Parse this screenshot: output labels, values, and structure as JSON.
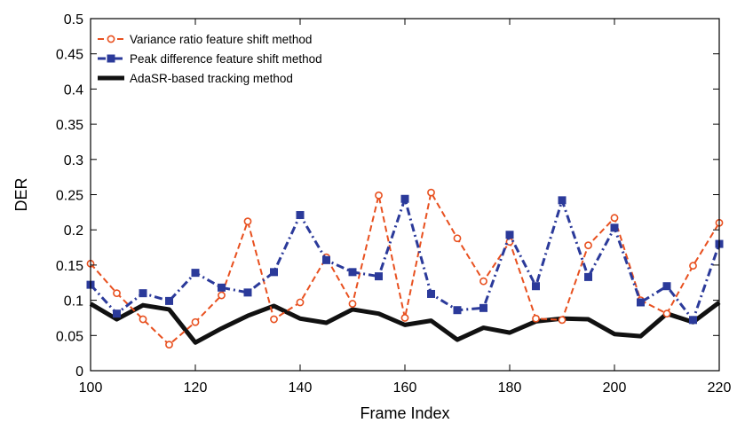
{
  "chart_data": {
    "type": "line",
    "xlabel": "Frame Index",
    "ylabel": "DER",
    "xlim": [
      100,
      220
    ],
    "ylim": [
      0,
      0.5
    ],
    "xticks": [
      100,
      120,
      140,
      160,
      180,
      200,
      220
    ],
    "yticks": [
      0,
      0.05,
      0.1,
      0.15,
      0.2,
      0.25,
      0.3,
      0.35,
      0.4,
      0.45,
      0.5
    ],
    "xtick_labels": [
      "100",
      "120",
      "140",
      "160",
      "180",
      "200",
      "220"
    ],
    "ytick_labels": [
      "0",
      "0.05",
      "0.1",
      "0.15",
      "0.2",
      "0.25",
      "0.3",
      "0.35",
      "0.4",
      "0.45",
      "0.5"
    ],
    "grid": false,
    "legend_position": "top-left",
    "x": [
      100,
      105,
      110,
      115,
      120,
      125,
      130,
      135,
      140,
      145,
      150,
      155,
      160,
      165,
      170,
      175,
      180,
      185,
      190,
      195,
      200,
      205,
      210,
      215,
      220
    ],
    "series": [
      {
        "name": "Variance ratio feature shift method",
        "color": "#e8501f",
        "line_style": "dashed",
        "marker": "circle",
        "values": [
          0.152,
          0.11,
          0.073,
          0.037,
          0.069,
          0.107,
          0.212,
          0.073,
          0.097,
          0.161,
          0.095,
          0.249,
          0.075,
          0.253,
          0.188,
          0.127,
          0.183,
          0.074,
          0.072,
          0.178,
          0.217,
          0.1,
          0.081,
          0.149,
          0.21
        ]
      },
      {
        "name": "Peak difference feature shift method",
        "color": "#2b3a9a",
        "line_style": "dash-dot",
        "marker": "square",
        "values": [
          0.122,
          0.081,
          0.11,
          0.099,
          0.139,
          0.118,
          0.111,
          0.14,
          0.221,
          0.157,
          0.14,
          0.134,
          0.244,
          0.109,
          0.086,
          0.089,
          0.193,
          0.12,
          0.242,
          0.133,
          0.203,
          0.097,
          0.12,
          0.072,
          0.18
        ]
      },
      {
        "name": "AdaSR-based tracking method",
        "color": "#111111",
        "line_style": "solid",
        "marker": "none",
        "values": [
          0.095,
          0.073,
          0.093,
          0.087,
          0.04,
          0.06,
          0.078,
          0.092,
          0.074,
          0.068,
          0.087,
          0.081,
          0.065,
          0.071,
          0.044,
          0.061,
          0.054,
          0.07,
          0.074,
          0.073,
          0.052,
          0.049,
          0.081,
          0.069,
          0.097
        ]
      }
    ]
  }
}
